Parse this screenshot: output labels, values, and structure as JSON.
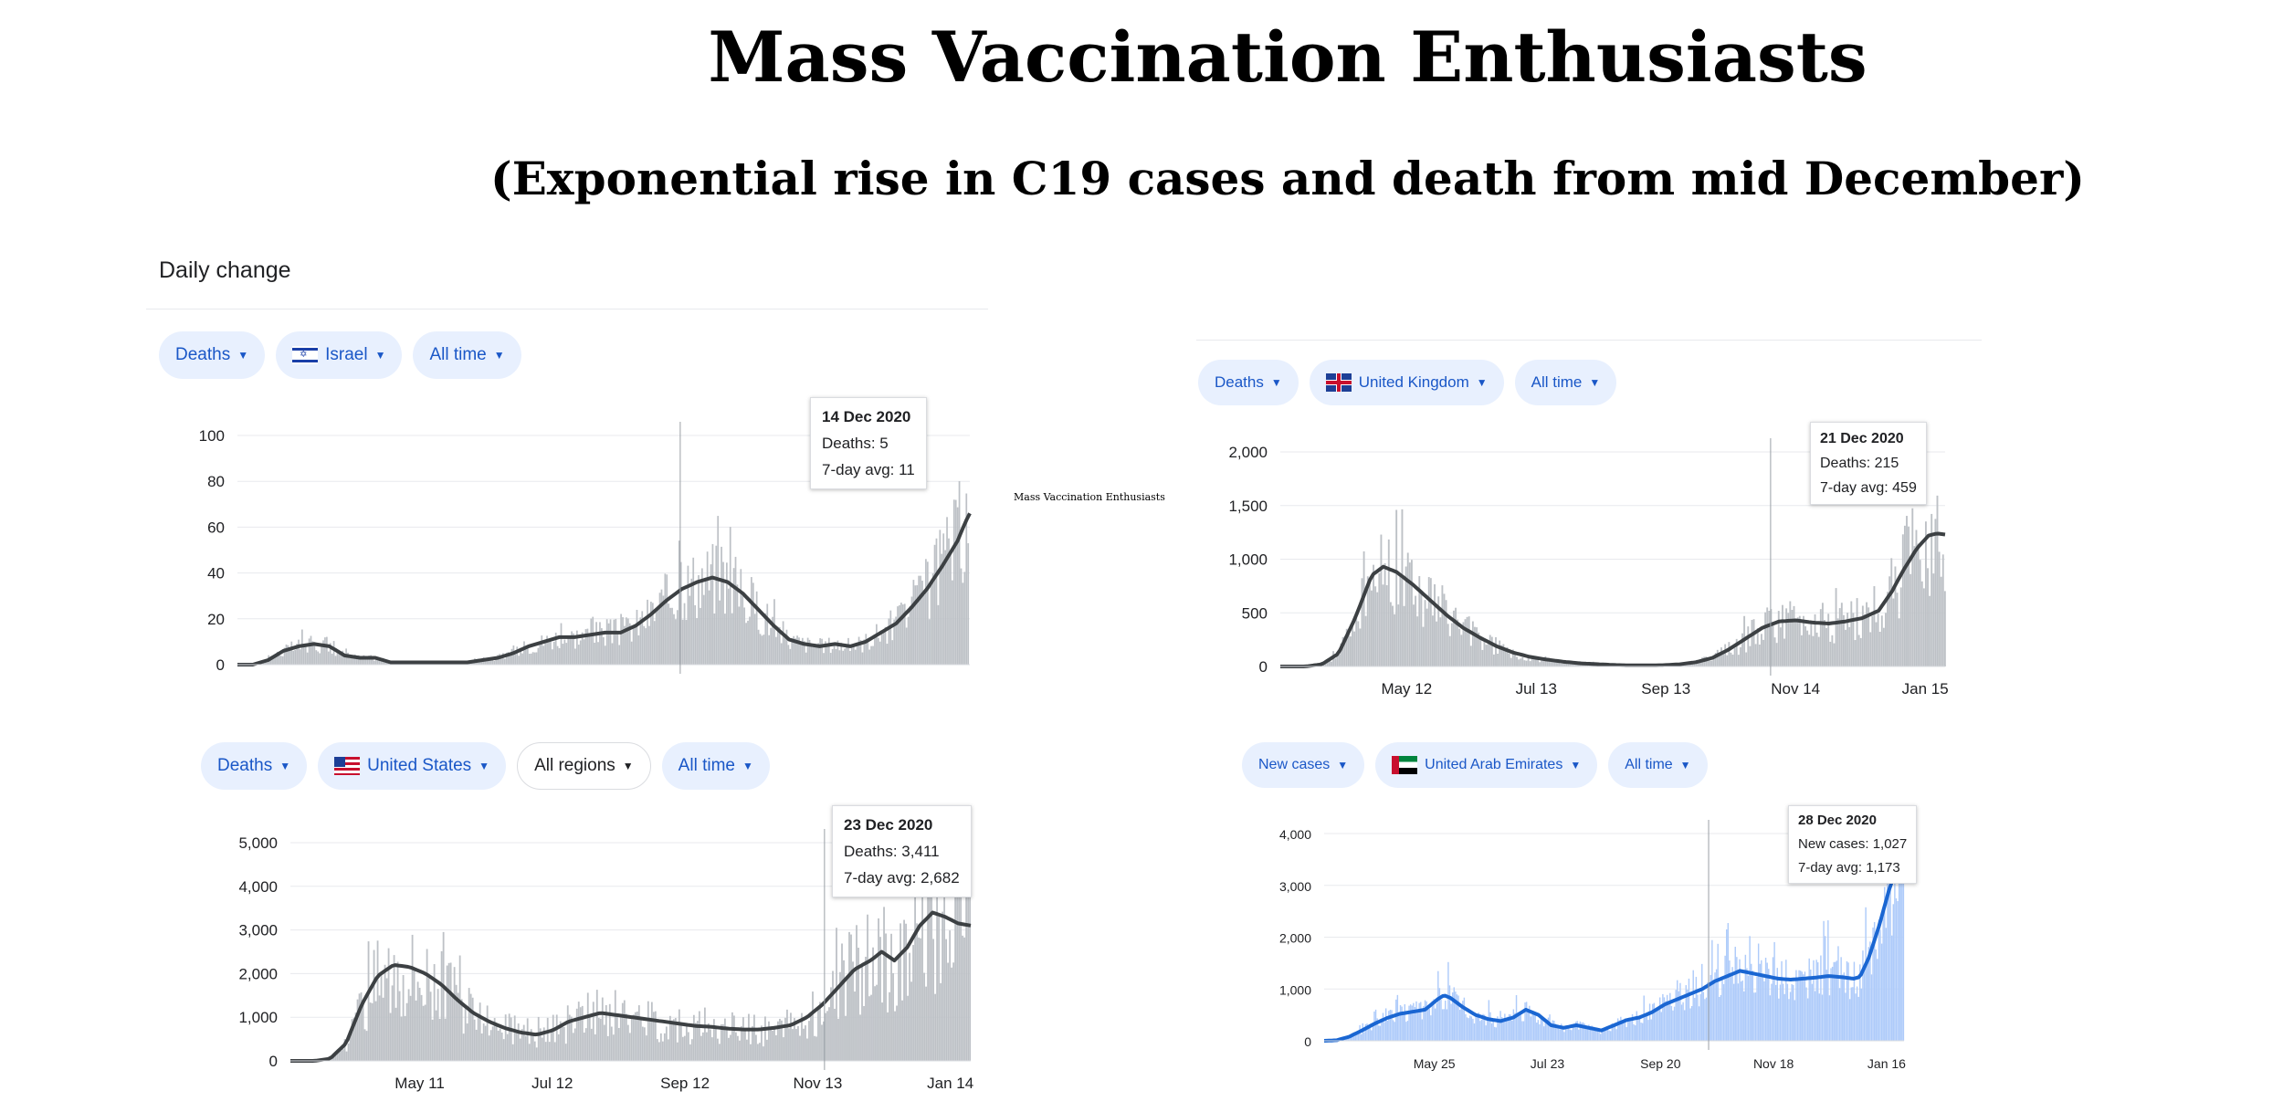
{
  "title": "Mass Vaccination Enthusiasts",
  "subtitle": "(Exponential rise in C19 cases and death from mid December)",
  "side_note": "Mass Vaccination Enthusiasts",
  "daily_change": "Daily change",
  "panels": [
    {
      "chips": {
        "metric": "Deaths",
        "country": "Israel",
        "region": "",
        "time": "All time"
      },
      "tooltip": {
        "date": "14 Dec 2020",
        "line1": "Deaths: 5",
        "line2": "7-day avg: 11"
      }
    },
    {
      "chips": {
        "metric": "Deaths",
        "country": "United Kingdom",
        "region": "",
        "time": "All time"
      },
      "tooltip": {
        "date": "21 Dec 2020",
        "line1": "Deaths: 215",
        "line2": "7-day avg: 459"
      }
    },
    {
      "chips": {
        "metric": "Deaths",
        "country": "United States",
        "region": "All regions",
        "time": "All time"
      },
      "tooltip": {
        "date": "23 Dec 2020",
        "line1": "Deaths: 3,411",
        "line2": "7-day avg: 2,682"
      }
    },
    {
      "chips": {
        "metric": "New cases",
        "country": "United Arab Emirates",
        "region": "",
        "time": "All time"
      },
      "tooltip": {
        "date": "28 Dec 2020",
        "line1": "New cases: 1,027",
        "line2": "7-day avg: 1,173"
      }
    }
  ],
  "chart_data": [
    {
      "type": "area",
      "country": "Israel",
      "metric": "Deaths",
      "ylim": [
        0,
        100
      ],
      "yticks": [
        "0",
        "20",
        "40",
        "60",
        "80",
        "100"
      ],
      "xticks": [],
      "xlim_days": [
        0,
        330
      ],
      "highlight_day": 289,
      "colors": {
        "bars": "#bdc1c6",
        "line": "#3c4043"
      },
      "avg_series": [
        [
          0,
          0
        ],
        [
          10,
          0
        ],
        [
          20,
          2
        ],
        [
          30,
          6
        ],
        [
          40,
          8
        ],
        [
          50,
          9
        ],
        [
          60,
          8
        ],
        [
          70,
          4
        ],
        [
          80,
          3
        ],
        [
          90,
          3
        ],
        [
          100,
          1
        ],
        [
          110,
          1
        ],
        [
          120,
          1
        ],
        [
          130,
          1
        ],
        [
          140,
          1
        ],
        [
          150,
          1
        ],
        [
          160,
          2
        ],
        [
          170,
          3
        ],
        [
          180,
          5
        ],
        [
          190,
          8
        ],
        [
          200,
          10
        ],
        [
          210,
          12
        ],
        [
          220,
          12
        ],
        [
          230,
          13
        ],
        [
          240,
          14
        ],
        [
          250,
          14
        ],
        [
          260,
          17
        ],
        [
          270,
          22
        ],
        [
          280,
          28
        ],
        [
          290,
          33
        ],
        [
          300,
          36
        ],
        [
          310,
          38
        ],
        [
          320,
          36
        ],
        [
          330,
          31
        ],
        [
          340,
          24
        ],
        [
          350,
          17
        ],
        [
          360,
          11
        ],
        [
          370,
          9
        ],
        [
          380,
          8
        ],
        [
          390,
          9
        ],
        [
          400,
          8
        ],
        [
          410,
          10
        ],
        [
          420,
          14
        ],
        [
          430,
          18
        ],
        [
          440,
          25
        ],
        [
          450,
          33
        ],
        [
          460,
          43
        ],
        [
          470,
          54
        ],
        [
          475,
          62
        ],
        [
          478,
          66
        ]
      ],
      "bar_spread": 0.45
    },
    {
      "type": "area",
      "country": "United Kingdom",
      "metric": "Deaths",
      "ylim": [
        0,
        2000
      ],
      "yticks": [
        "0",
        "500",
        "1,000",
        "1,500",
        "2,000"
      ],
      "xticks": [
        "May 12",
        "Jul 13",
        "Sep 13",
        "Nov 14",
        "Jan 15"
      ],
      "highlight_day": 295,
      "colors": {
        "bars": "#bdc1c6",
        "line": "#3c4043"
      },
      "avg_series": [
        [
          0,
          0
        ],
        [
          15,
          0
        ],
        [
          25,
          20
        ],
        [
          35,
          120
        ],
        [
          45,
          450
        ],
        [
          55,
          850
        ],
        [
          62,
          930
        ],
        [
          70,
          880
        ],
        [
          80,
          760
        ],
        [
          90,
          620
        ],
        [
          100,
          480
        ],
        [
          110,
          360
        ],
        [
          120,
          270
        ],
        [
          130,
          190
        ],
        [
          140,
          130
        ],
        [
          150,
          90
        ],
        [
          160,
          65
        ],
        [
          170,
          45
        ],
        [
          180,
          30
        ],
        [
          190,
          22
        ],
        [
          200,
          15
        ],
        [
          210,
          10
        ],
        [
          220,
          10
        ],
        [
          230,
          12
        ],
        [
          240,
          20
        ],
        [
          250,
          40
        ],
        [
          260,
          80
        ],
        [
          270,
          160
        ],
        [
          280,
          260
        ],
        [
          290,
          360
        ],
        [
          300,
          420
        ],
        [
          310,
          430
        ],
        [
          320,
          410
        ],
        [
          330,
          400
        ],
        [
          340,
          420
        ],
        [
          350,
          450
        ],
        [
          360,
          520
        ],
        [
          368,
          700
        ],
        [
          375,
          900
        ],
        [
          383,
          1100
        ],
        [
          390,
          1220
        ],
        [
          395,
          1240
        ],
        [
          400,
          1230
        ]
      ],
      "bar_spread": 0.5
    },
    {
      "type": "area",
      "country": "United States",
      "metric": "Deaths",
      "ylim": [
        0,
        5000
      ],
      "yticks": [
        "0",
        "1,000",
        "2,000",
        "3,000",
        "4,000",
        "5,000"
      ],
      "xticks": [
        "May 11",
        "Jul 12",
        "Sep 12",
        "Nov 13",
        "Jan 14"
      ],
      "highlight_day": 336,
      "colors": {
        "bars": "#bdc1c6",
        "line": "#3c4043"
      },
      "avg_series": [
        [
          0,
          0
        ],
        [
          15,
          0
        ],
        [
          25,
          50
        ],
        [
          35,
          400
        ],
        [
          45,
          1300
        ],
        [
          55,
          1950
        ],
        [
          65,
          2200
        ],
        [
          75,
          2150
        ],
        [
          85,
          2000
        ],
        [
          95,
          1750
        ],
        [
          105,
          1400
        ],
        [
          115,
          1100
        ],
        [
          125,
          900
        ],
        [
          135,
          750
        ],
        [
          145,
          650
        ],
        [
          155,
          600
        ],
        [
          165,
          700
        ],
        [
          175,
          900
        ],
        [
          185,
          1000
        ],
        [
          195,
          1100
        ],
        [
          205,
          1050
        ],
        [
          215,
          1000
        ],
        [
          225,
          950
        ],
        [
          235,
          900
        ],
        [
          245,
          850
        ],
        [
          255,
          800
        ],
        [
          265,
          780
        ],
        [
          275,
          740
        ],
        [
          285,
          720
        ],
        [
          295,
          720
        ],
        [
          305,
          760
        ],
        [
          315,
          820
        ],
        [
          325,
          1000
        ],
        [
          335,
          1300
        ],
        [
          345,
          1700
        ],
        [
          355,
          2100
        ],
        [
          365,
          2300
        ],
        [
          372,
          2500
        ],
        [
          380,
          2300
        ],
        [
          388,
          2600
        ],
        [
          396,
          3100
        ],
        [
          404,
          3400
        ],
        [
          412,
          3300
        ],
        [
          420,
          3150
        ],
        [
          428,
          3100
        ]
      ],
      "bar_spread": 0.55
    },
    {
      "type": "area",
      "country": "United Arab Emirates",
      "metric": "New cases",
      "ylim": [
        0,
        4000
      ],
      "yticks": [
        "0",
        "1,000",
        "2,000",
        "3,000",
        "4,000"
      ],
      "xticks": [
        "May 25",
        "Jul 23",
        "Sep 20",
        "Nov 18",
        "Jan 16"
      ],
      "highlight_day": 305,
      "colors": {
        "bars": "#aecbfa",
        "line": "#1a66d2"
      },
      "avg_series": [
        [
          0,
          0
        ],
        [
          10,
          10
        ],
        [
          20,
          80
        ],
        [
          30,
          200
        ],
        [
          40,
          330
        ],
        [
          50,
          440
        ],
        [
          60,
          520
        ],
        [
          70,
          560
        ],
        [
          80,
          600
        ],
        [
          90,
          800
        ],
        [
          95,
          880
        ],
        [
          100,
          830
        ],
        [
          110,
          650
        ],
        [
          120,
          500
        ],
        [
          130,
          420
        ],
        [
          140,
          380
        ],
        [
          150,
          450
        ],
        [
          160,
          600
        ],
        [
          170,
          500
        ],
        [
          180,
          300
        ],
        [
          190,
          250
        ],
        [
          200,
          300
        ],
        [
          210,
          250
        ],
        [
          220,
          200
        ],
        [
          230,
          300
        ],
        [
          240,
          400
        ],
        [
          250,
          450
        ],
        [
          260,
          550
        ],
        [
          270,
          700
        ],
        [
          280,
          800
        ],
        [
          290,
          900
        ],
        [
          300,
          1000
        ],
        [
          310,
          1150
        ],
        [
          320,
          1250
        ],
        [
          330,
          1350
        ],
        [
          340,
          1300
        ],
        [
          350,
          1250
        ],
        [
          360,
          1200
        ],
        [
          370,
          1180
        ],
        [
          380,
          1200
        ],
        [
          390,
          1220
        ],
        [
          400,
          1250
        ],
        [
          410,
          1230
        ],
        [
          420,
          1200
        ],
        [
          425,
          1230
        ],
        [
          432,
          1600
        ],
        [
          440,
          2200
        ],
        [
          448,
          2900
        ],
        [
          455,
          3400
        ],
        [
          460,
          3700
        ]
      ],
      "bar_spread": 0.35
    }
  ]
}
